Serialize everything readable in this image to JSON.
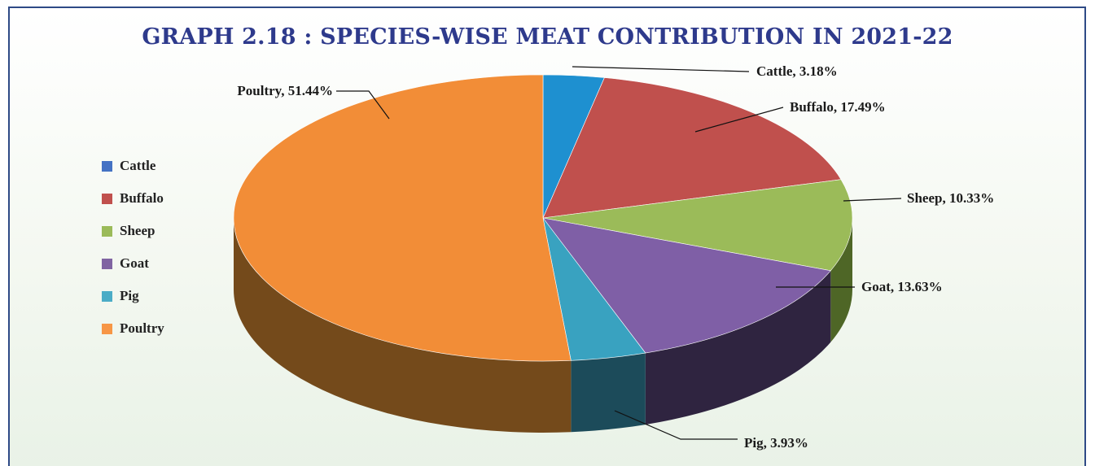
{
  "chart_data": {
    "type": "pie",
    "title": "GRAPH 2.18 : SPECIES-WISE MEAT CONTRIBUTION IN 2021-22",
    "unit": "%",
    "three_d": true,
    "legend_position": "left",
    "slices": [
      {
        "name": "Cattle",
        "value": 3.18,
        "label": "Cattle, 3.18%",
        "color": "#1e90d0",
        "side": "#0f4a6c",
        "legend_color": "#4472c4"
      },
      {
        "name": "Buffalo",
        "value": 17.49,
        "label": "Buffalo, 17.49%",
        "color": "#c0504d",
        "side": "#6b2625",
        "legend_color": "#c0504d"
      },
      {
        "name": "Sheep",
        "value": 10.33,
        "label": "Sheep, 10.33%",
        "color": "#9bbb59",
        "side": "#4e6626",
        "legend_color": "#9bbb59"
      },
      {
        "name": "Goat",
        "value": 13.63,
        "label": "Goat, 13.63%",
        "color": "#7f5fa6",
        "side": "#2f2440",
        "legend_color": "#8064a2"
      },
      {
        "name": "Pig",
        "value": 3.93,
        "label": "Pig, 3.93%",
        "color": "#39a2c0",
        "side": "#1c4b5a",
        "legend_color": "#4bacc6"
      },
      {
        "name": "Poultry",
        "value": 51.44,
        "label": "Poultry, 51.44%",
        "color": "#f28d37",
        "side": "#744a1b",
        "legend_color": "#f79646"
      }
    ]
  }
}
